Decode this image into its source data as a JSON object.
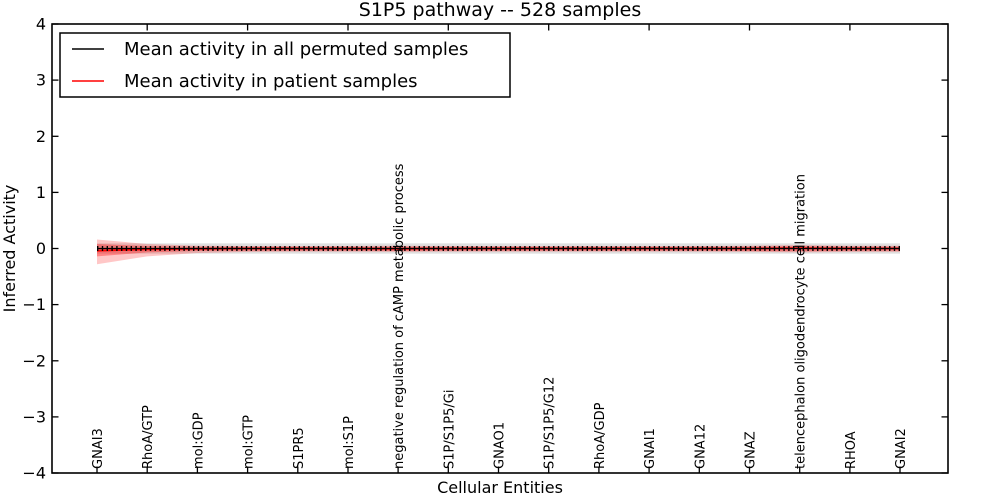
{
  "figure": {
    "title": "S1P5 pathway -- 528 samples",
    "xlabel": "Cellular Entities",
    "ylabel": "Inferred Activity"
  },
  "legend": {
    "items": [
      {
        "label": "Mean activity in all permuted samples",
        "color": "#000000"
      },
      {
        "label": "Mean activity in patient samples",
        "color": "#ff0000"
      }
    ]
  },
  "chart_data": {
    "type": "line",
    "title": "S1P5 pathway -- 528 samples",
    "xlabel": "Cellular Entities",
    "ylabel": "Inferred Activity",
    "ylim": [
      -4,
      4
    ],
    "grid": false,
    "legend_position": "upper left",
    "y_ticks": [
      "4",
      "3",
      "2",
      "1",
      "0",
      "−1",
      "−2",
      "−3",
      "−4"
    ],
    "categories": [
      "GNAI3",
      "RhoA/GTP",
      "mol:GDP",
      "mol:GTP",
      "S1PR5",
      "mol:S1P",
      "negative regulation of cAMP metabolic process",
      "S1P/S1P5/Gi",
      "GNAO1",
      "S1P/S1P5/G12",
      "RhoA/GDP",
      "GNAI1",
      "GNA12",
      "GNAZ",
      "telencephalon oligodendrocyte cell migration",
      "RHOA",
      "GNAI2"
    ],
    "series": [
      {
        "name": "Mean activity in all permuted samples",
        "color": "#000000",
        "values": [
          0,
          0,
          0,
          0,
          0,
          0,
          0,
          0,
          0,
          0,
          0,
          0,
          0,
          0,
          0,
          0,
          0
        ]
      },
      {
        "name": "Mean activity in patient samples",
        "color": "#ff0000",
        "values": [
          -0.04,
          -0.015,
          -0.005,
          0,
          0,
          0,
          -0.005,
          0,
          0,
          0,
          0,
          0,
          0,
          0,
          0.005,
          0,
          0
        ]
      }
    ],
    "bands": {
      "permuted_std": {
        "upper": [
          0.09,
          0.09,
          0.09,
          0.09,
          0.09,
          0.09,
          0.09,
          0.09,
          0.09,
          0.09,
          0.09,
          0.09,
          0.09,
          0.09,
          0.09,
          0.09,
          0.09
        ],
        "lower": [
          -0.09,
          -0.09,
          -0.09,
          -0.09,
          -0.09,
          -0.09,
          -0.09,
          -0.09,
          -0.09,
          -0.09,
          -0.09,
          -0.09,
          -0.09,
          -0.09,
          -0.09,
          -0.09,
          -0.09
        ],
        "color": "rgba(0,0,0,0.13)"
      },
      "patient_std_outer": {
        "upper": [
          0.16,
          0.08,
          0.05,
          0.045,
          0.045,
          0.045,
          0.05,
          0.045,
          0.045,
          0.045,
          0.045,
          0.045,
          0.045,
          0.05,
          0.06,
          0.05,
          0.05
        ],
        "lower": [
          -0.28,
          -0.14,
          -0.08,
          -0.06,
          -0.055,
          -0.055,
          -0.06,
          -0.055,
          -0.055,
          -0.055,
          -0.055,
          -0.055,
          -0.055,
          -0.06,
          -0.07,
          -0.06,
          -0.06
        ],
        "color": "rgba(255,0,0,0.22)"
      },
      "patient_std_inner": {
        "upper": [
          0.08,
          0.045,
          0.03,
          0.028,
          0.028,
          0.028,
          0.03,
          0.028,
          0.028,
          0.028,
          0.028,
          0.028,
          0.028,
          0.03,
          0.04,
          0.03,
          0.03
        ],
        "lower": [
          -0.14,
          -0.07,
          -0.045,
          -0.04,
          -0.04,
          -0.04,
          -0.045,
          -0.04,
          -0.04,
          -0.04,
          -0.04,
          -0.04,
          -0.04,
          -0.045,
          -0.05,
          -0.04,
          -0.04
        ],
        "color": "rgba(255,0,0,0.33)"
      }
    }
  }
}
